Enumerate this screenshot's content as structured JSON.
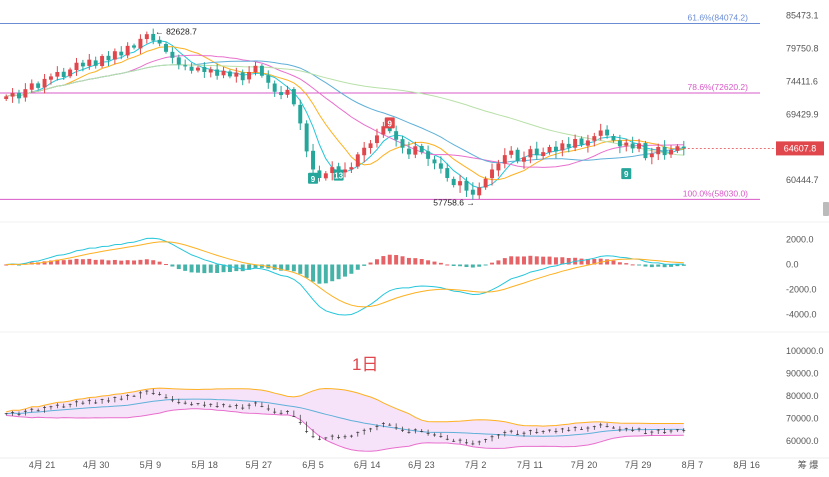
{
  "chart_data": {
    "type": "candlestick",
    "period_label": "1日",
    "x_ticks": [
      "4月 21",
      "4月 30",
      "5月 9",
      "5月 18",
      "5月 27",
      "6月 5",
      "6月 14",
      "6月 23",
      "7月 2",
      "7月 11",
      "7月 20",
      "7月 29",
      "8月 7",
      "8月 16"
    ],
    "corner_label": "筹 爆",
    "price_axis": {
      "range": [
        56500,
        86500
      ],
      "ticks": [
        "85473.1",
        "79750.8",
        "74411.6",
        "69429.9",
        "64607.8",
        "60444.7"
      ],
      "tick_values": [
        85473.1,
        79750.8,
        74411.6,
        69429.9,
        64607.8,
        60444.7
      ],
      "log_scale": true
    },
    "last_price": {
      "label": "64607.8",
      "value": 64607.8,
      "color": "#e0474c"
    },
    "fib_levels": [
      {
        "label": "61.6%(84074.2)",
        "value": 84074.2,
        "color": "#6b8dd6"
      },
      {
        "label": "78.6%(72620.2)",
        "value": 72620.2,
        "color": "#d958c9"
      },
      {
        "label": "100.0%(58030.0)",
        "value": 58030.0,
        "color": "#d958c9"
      }
    ],
    "annotations": [
      {
        "label": "← 82628.7",
        "value": 82628.7,
        "kind": "high"
      },
      {
        "label": "57758.6 →",
        "value": 57758.6,
        "kind": "low"
      }
    ],
    "signal_badges": [
      {
        "label": "9",
        "value": 60600,
        "color": "#26a69a"
      },
      {
        "label": "13",
        "value": 61000,
        "color": "#26a69a"
      },
      {
        "label": "9",
        "value": 68100,
        "color": "#e0474c"
      },
      {
        "label": "9",
        "value": 61200,
        "color": "#26a69a"
      }
    ],
    "closes": [
      72100,
      72600,
      71800,
      73200,
      74100,
      73400,
      74800,
      75200,
      75900,
      75100,
      76300,
      77400,
      76800,
      77900,
      76900,
      78500,
      77800,
      79300,
      78600,
      80200,
      79900,
      81400,
      82200,
      81100,
      80600,
      79200,
      78200,
      77100,
      76800,
      76100,
      76600,
      75900,
      76300,
      75300,
      76100,
      75200,
      75800,
      74600,
      75900,
      76900,
      75300,
      74200,
      72800,
      72300,
      73100,
      70900,
      68100,
      64200,
      61800,
      60700,
      61300,
      62100,
      61500,
      61800,
      62100,
      63800,
      64700,
      65300,
      66400,
      67700,
      67000,
      65800,
      64700,
      63800,
      64900,
      64100,
      63200,
      62600,
      61900,
      60700,
      59800,
      60300,
      59100,
      58600,
      59500,
      60600,
      61800,
      62600,
      63700,
      64300,
      62900,
      63400,
      64500,
      63700,
      64100,
      64800,
      64200,
      65300,
      64700,
      65900,
      65100,
      65700,
      66300,
      67100,
      66400,
      65700,
      64900,
      65400,
      64600,
      65300,
      63300,
      63900,
      64800,
      63700,
      64400,
      64900,
      64607.8
    ],
    "overlays": [
      {
        "kind": "moving-average",
        "color": "#26c6da"
      },
      {
        "kind": "moving-average",
        "color": "#ffb020"
      },
      {
        "kind": "moving-average",
        "color": "#e86fcd"
      },
      {
        "kind": "moving-average",
        "color": "#5fb0d8"
      },
      {
        "kind": "moving-average",
        "color": "#b8e0a8"
      }
    ],
    "macd_axis": {
      "range": [
        -4600,
        2600
      ],
      "ticks": [
        "2000.0",
        "0.0",
        "-2000.0",
        "-4000.0"
      ],
      "tick_values": [
        2000,
        0,
        -2000,
        -4000
      ]
    },
    "macd_colors": {
      "positive": "#e0474c",
      "negative": "#26a69a",
      "dif": "#26c6da",
      "dea": "#ffb020"
    },
    "band_axis": {
      "range": [
        55000,
        105000
      ],
      "ticks": [
        "100000.0",
        "90000.0",
        "80000.0",
        "70000.0",
        "60000.0"
      ],
      "tick_values": [
        100000,
        90000,
        80000,
        70000,
        60000
      ]
    },
    "band_colors": {
      "upper": "#ffb020",
      "lower": "#e86fcd",
      "mid": "#5fb0d8",
      "fill": "#f0d0f5"
    },
    "colors": {
      "up": "#e0474c",
      "down": "#26a69a"
    }
  }
}
